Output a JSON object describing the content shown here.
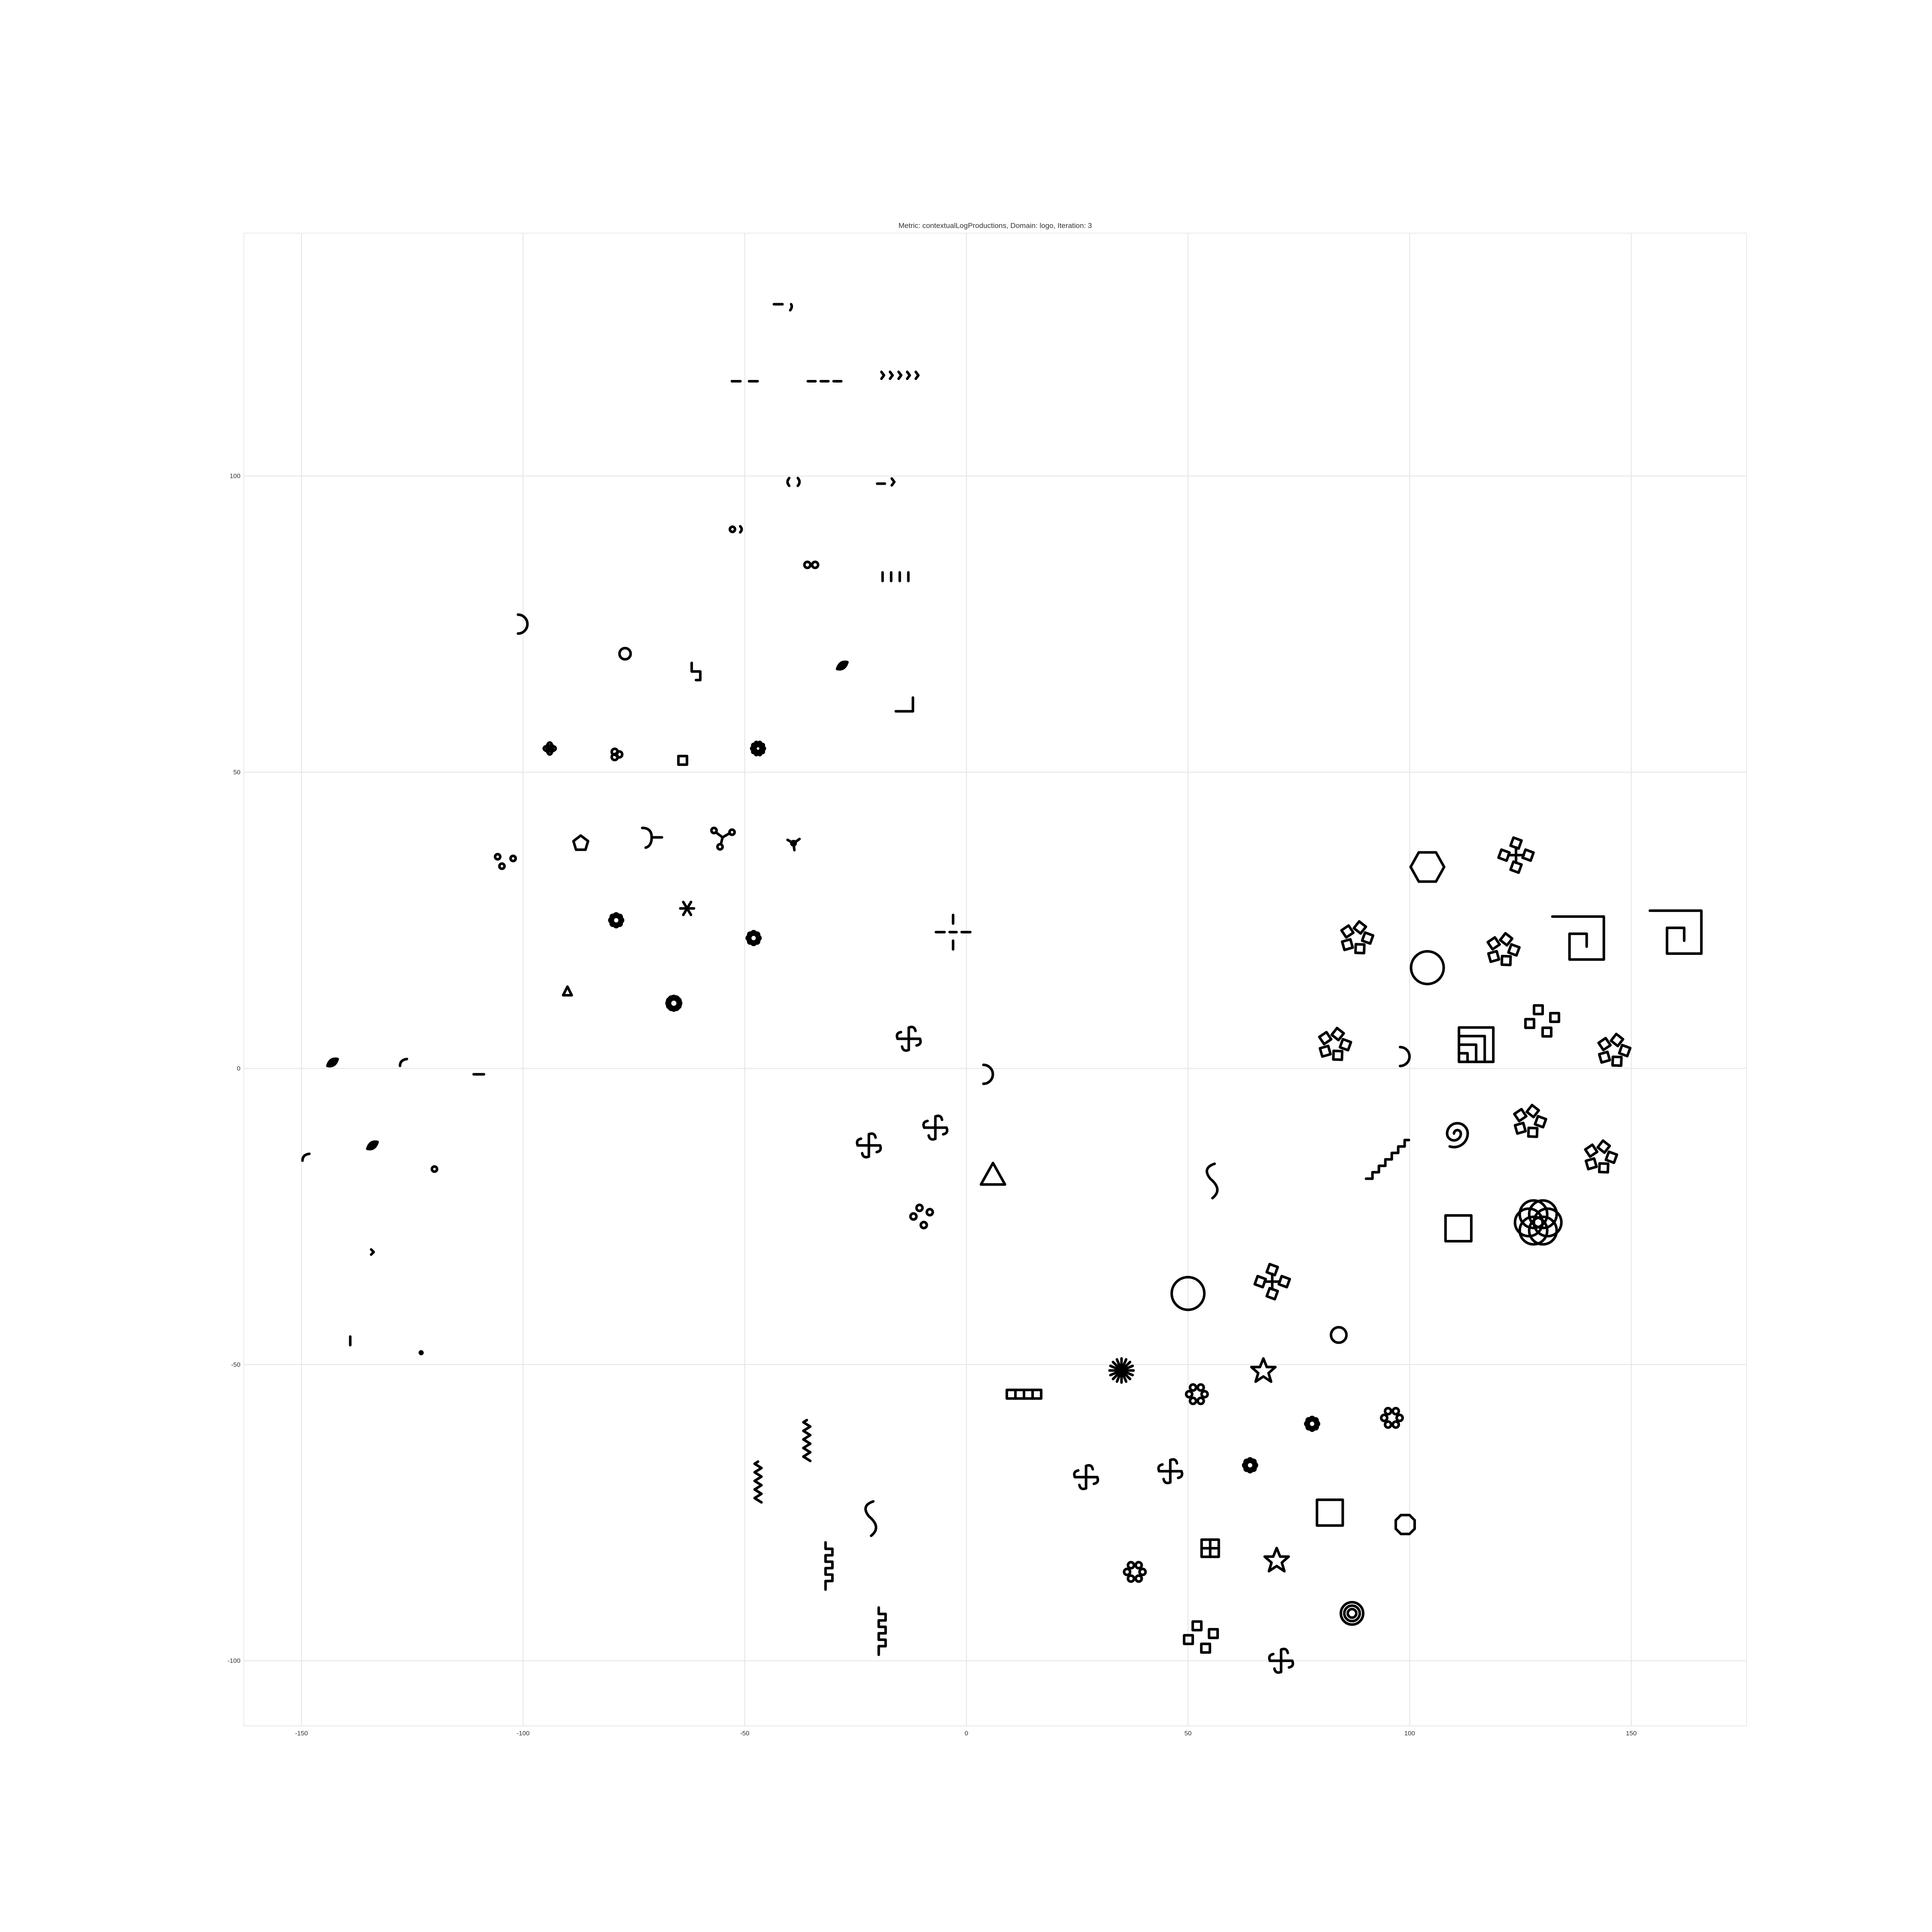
{
  "chart_data": {
    "type": "scatter",
    "title": "Metric: contextualLogProductions, Domain: logo, Iteration: 3",
    "xlabel": "",
    "ylabel": "",
    "xlim": [
      -163,
      176
    ],
    "ylim": [
      -111,
      141
    ],
    "x_ticks": [
      -150,
      -100,
      -50,
      0,
      50,
      100,
      150
    ],
    "y_ticks": [
      -100,
      -50,
      0,
      50,
      100
    ],
    "x_tick_labels": [
      "-150",
      "-100",
      "-50",
      "0",
      "50",
      "100",
      "150"
    ],
    "y_tick_labels": [
      "-100",
      "-50",
      "0",
      "50",
      "100"
    ],
    "grid": true,
    "legend": "none",
    "points": [
      {
        "x": -41,
        "y": 129,
        "icon": "dash-comma-icon"
      },
      {
        "x": -50,
        "y": 116,
        "icon": "double-dash-icon"
      },
      {
        "x": -32,
        "y": 116,
        "icon": "triple-dash-icon"
      },
      {
        "x": -15,
        "y": 117,
        "icon": "chevrons-icon"
      },
      {
        "x": -39,
        "y": 99,
        "icon": "paren-pair-icon"
      },
      {
        "x": -18,
        "y": 99,
        "icon": "dash-chevron-icon"
      },
      {
        "x": -52,
        "y": 91,
        "icon": "dot-paren-icon"
      },
      {
        "x": -35,
        "y": 85,
        "icon": "double-ring-icon"
      },
      {
        "x": -16,
        "y": 83,
        "icon": "vertical-bars-icon"
      },
      {
        "x": -100,
        "y": 75,
        "icon": "half-circle-icon"
      },
      {
        "x": -77,
        "y": 70,
        "icon": "ring-icon"
      },
      {
        "x": -61,
        "y": 67,
        "icon": "step-icon"
      },
      {
        "x": -28,
        "y": 68,
        "icon": "leaf-icon"
      },
      {
        "x": -14,
        "y": 61,
        "icon": "corner-icon"
      },
      {
        "x": -94,
        "y": 54,
        "icon": "cross-flower-icon"
      },
      {
        "x": -79,
        "y": 53,
        "icon": "clover-icon"
      },
      {
        "x": -64,
        "y": 52,
        "icon": "small-square-icon"
      },
      {
        "x": -47,
        "y": 54,
        "icon": "star-flower-icon"
      },
      {
        "x": -104,
        "y": 35,
        "icon": "three-dots-icon"
      },
      {
        "x": -87,
        "y": 38,
        "icon": "pentagon-icon"
      },
      {
        "x": -71,
        "y": 39,
        "icon": "curl-icon"
      },
      {
        "x": -55,
        "y": 39,
        "icon": "triple-loop-icon"
      },
      {
        "x": -39,
        "y": 38,
        "icon": "triskelion-icon"
      },
      {
        "x": -79,
        "y": 25,
        "icon": "rosette-icon"
      },
      {
        "x": -63,
        "y": 27,
        "icon": "asterisk-icon"
      },
      {
        "x": -48,
        "y": 22,
        "icon": "rosette-icon"
      },
      {
        "x": -90,
        "y": 13,
        "icon": "small-triangle-icon"
      },
      {
        "x": -66,
        "y": 11,
        "icon": "spiral-flower-icon"
      },
      {
        "x": -3,
        "y": 23,
        "icon": "broken-cross-icon"
      },
      {
        "x": -143,
        "y": 1,
        "icon": "leaf-icon"
      },
      {
        "x": -127,
        "y": 1,
        "icon": "arc-icon"
      },
      {
        "x": -110,
        "y": -1,
        "icon": "dash-icon"
      },
      {
        "x": -149,
        "y": -15,
        "icon": "arc-icon"
      },
      {
        "x": -134,
        "y": -13,
        "icon": "leaf-icon"
      },
      {
        "x": -120,
        "y": -17,
        "icon": "dot-icon"
      },
      {
        "x": -134,
        "y": -31,
        "icon": "chevron-icon"
      },
      {
        "x": -139,
        "y": -46,
        "icon": "tick-icon"
      },
      {
        "x": -123,
        "y": -48,
        "icon": "point-icon"
      },
      {
        "x": -13,
        "y": 5,
        "icon": "pinwheel-icon"
      },
      {
        "x": 5,
        "y": -1,
        "icon": "half-circle-icon"
      },
      {
        "x": -22,
        "y": -13,
        "icon": "pinwheel-icon"
      },
      {
        "x": -7,
        "y": -10,
        "icon": "pinwheel-icon"
      },
      {
        "x": 6,
        "y": -18,
        "icon": "triangle-icon"
      },
      {
        "x": -10,
        "y": -25,
        "icon": "four-dots-icon"
      },
      {
        "x": 104,
        "y": 34,
        "icon": "hexagon-icon"
      },
      {
        "x": 124,
        "y": 36,
        "icon": "square-cross-icon"
      },
      {
        "x": 88,
        "y": 22,
        "icon": "square-flower-icon"
      },
      {
        "x": 121,
        "y": 20,
        "icon": "square-flower-icon"
      },
      {
        "x": 138,
        "y": 22,
        "icon": "square-spiral-icon"
      },
      {
        "x": 160,
        "y": 23,
        "icon": "square-spiral-icon"
      },
      {
        "x": 104,
        "y": 17,
        "icon": "circle-icon"
      },
      {
        "x": 83,
        "y": 4,
        "icon": "square-flower-icon"
      },
      {
        "x": 99,
        "y": 2,
        "icon": "half-circle-icon"
      },
      {
        "x": 115,
        "y": 4,
        "icon": "nested-squares-icon"
      },
      {
        "x": 130,
        "y": 7,
        "icon": "square-dots-icon"
      },
      {
        "x": 146,
        "y": 3,
        "icon": "square-flower-icon"
      },
      {
        "x": 110,
        "y": -11,
        "icon": "spiral-icon"
      },
      {
        "x": 127,
        "y": -9,
        "icon": "square-flower-icon"
      },
      {
        "x": 143,
        "y": -15,
        "icon": "square-flower-icon"
      },
      {
        "x": 56,
        "y": -19,
        "icon": "s-curve-icon"
      },
      {
        "x": 95,
        "y": -15,
        "icon": "staircase-icon"
      },
      {
        "x": 111,
        "y": -27,
        "icon": "square-icon"
      },
      {
        "x": 129,
        "y": -26,
        "icon": "circle-rosette-icon"
      },
      {
        "x": 69,
        "y": -36,
        "icon": "square-cross-icon"
      },
      {
        "x": 50,
        "y": -38,
        "icon": "circle-icon"
      },
      {
        "x": 84,
        "y": -45,
        "icon": "small-circle-icon"
      },
      {
        "x": 35,
        "y": -51,
        "icon": "sunburst-icon"
      },
      {
        "x": 67,
        "y": -51,
        "icon": "star-icon"
      },
      {
        "x": 13,
        "y": -55,
        "icon": "chain-squares-icon"
      },
      {
        "x": 52,
        "y": -55,
        "icon": "ring-of-circles-icon"
      },
      {
        "x": 78,
        "y": -60,
        "icon": "rosette-icon"
      },
      {
        "x": 96,
        "y": -59,
        "icon": "ring-of-circles-icon"
      },
      {
        "x": -36,
        "y": -63,
        "icon": "zigzag-icon"
      },
      {
        "x": -47,
        "y": -70,
        "icon": "zigzag-icon"
      },
      {
        "x": 27,
        "y": -69,
        "icon": "pinwheel-icon"
      },
      {
        "x": 46,
        "y": -68,
        "icon": "pinwheel-icon"
      },
      {
        "x": 64,
        "y": -67,
        "icon": "rosette-icon"
      },
      {
        "x": -21,
        "y": -76,
        "icon": "s-curve-icon"
      },
      {
        "x": 82,
        "y": -75,
        "icon": "square-icon"
      },
      {
        "x": 99,
        "y": -77,
        "icon": "octagon-icon"
      },
      {
        "x": -31,
        "y": -84,
        "icon": "square-wave-icon"
      },
      {
        "x": 38,
        "y": -85,
        "icon": "ring-of-circles-icon"
      },
      {
        "x": 55,
        "y": -81,
        "icon": "window-icon"
      },
      {
        "x": 70,
        "y": -83,
        "icon": "star-icon"
      },
      {
        "x": -19,
        "y": -95,
        "icon": "square-wave-icon"
      },
      {
        "x": 87,
        "y": -92,
        "icon": "nested-circles-icon"
      },
      {
        "x": 53,
        "y": -97,
        "icon": "square-dots-icon"
      },
      {
        "x": 71,
        "y": -100,
        "icon": "pinwheel-icon"
      }
    ]
  }
}
